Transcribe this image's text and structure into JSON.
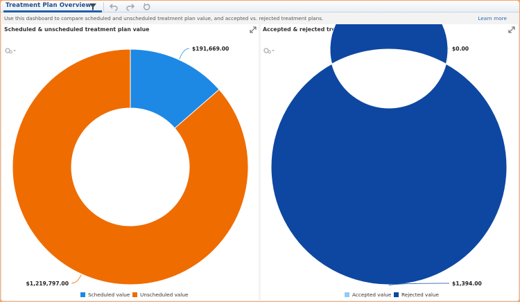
{
  "toolbar": {
    "title": "Treatment Plan Overview",
    "icons": [
      "filter-icon",
      "undo-icon",
      "redo-icon",
      "reset-icon"
    ]
  },
  "info": {
    "description": "Use this dashboard to compare scheduled and unscheduled treatment plan value, and accepted vs. rejected treatment plans.",
    "learn_more": "Learn more"
  },
  "colors": {
    "scheduled": "#1e88e5",
    "unscheduled": "#ef6c00",
    "accepted": "#90caf9",
    "rejected": "#0d47a1"
  },
  "panels": [
    {
      "title": "Scheduled & unscheduled treatment plan value",
      "legend": [
        "Scheduled value",
        "Unscheduled value"
      ]
    },
    {
      "title": "Accepted & rejected treatment plan value",
      "legend": [
        "Accepted value",
        "Rejected value"
      ]
    }
  ],
  "chart_data": [
    {
      "type": "pie",
      "title": "Scheduled & unscheduled treatment plan value",
      "categories": [
        "Scheduled value",
        "Unscheduled value"
      ],
      "values": [
        191669.0,
        1219797.0
      ],
      "labels": [
        "$191,669.00",
        "$1,219,797.00"
      ],
      "colors": [
        "#1e88e5",
        "#ef6c00"
      ],
      "donut": true,
      "legend": "bottom"
    },
    {
      "type": "pie",
      "title": "Accepted & rejected treatment plan value",
      "categories": [
        "Accepted value",
        "Rejected value"
      ],
      "values": [
        0.0,
        1394.0
      ],
      "labels": [
        "$0.00",
        "$1,394.00"
      ],
      "colors": [
        "#90caf9",
        "#0d47a1"
      ],
      "donut": true,
      "legend": "bottom"
    }
  ]
}
